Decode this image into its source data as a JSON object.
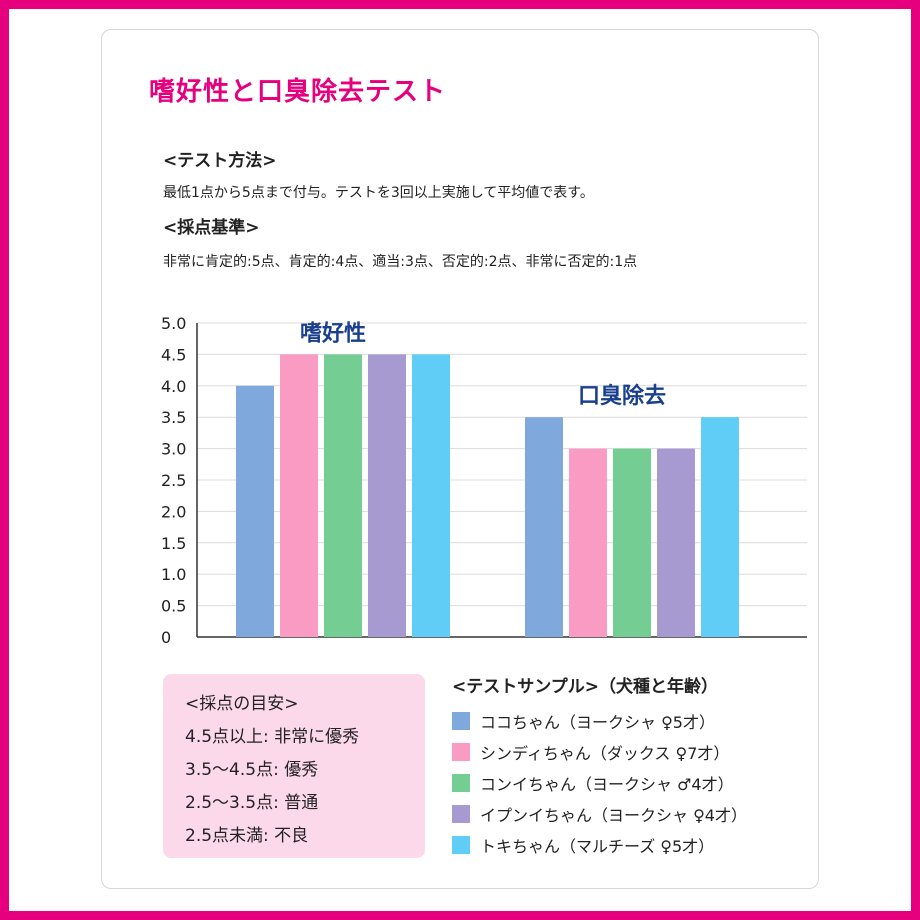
{
  "title": "嗜好性と口臭除去テスト",
  "method": {
    "heading": "<テスト方法>",
    "text": "最低1点から5点まで付与。テストを3回以上実施して平均値で表す。"
  },
  "criteria": {
    "heading": "<採点基準>",
    "text": "非常に肯定的:5点、肯定的:4点、適当:3点、否定的:2点、非常に否定的:1点"
  },
  "guide": {
    "heading": "<採点の目安>",
    "lines": [
      "4.5点以上: 非常に優秀",
      "3.5〜4.5点: 優秀",
      "2.5〜3.5点: 普通",
      "2.5点未満: 不良"
    ]
  },
  "legend_title": "<テストサンプル>（犬種と年齢）",
  "colors": [
    "#7fa9dc",
    "#f99bc2",
    "#74cd92",
    "#a79ad0",
    "#5fcdf6"
  ],
  "chart_data": {
    "type": "bar",
    "categories": [
      "嗜好性",
      "口臭除去"
    ],
    "series": [
      {
        "name": "ココちゃん（ヨークシャ ♀5才）",
        "values": [
          4.0,
          3.5
        ]
      },
      {
        "name": "シンディちゃん（ダックス ♀7才）",
        "values": [
          4.5,
          3.0
        ]
      },
      {
        "name": "コンイちゃん（ヨークシャ ♂4才）",
        "values": [
          4.5,
          3.0
        ]
      },
      {
        "name": "イプンイちゃん（ヨークシャ ♀4才）",
        "values": [
          4.5,
          3.0
        ]
      },
      {
        "name": "トキちゃん（マルチーズ ♀5才）",
        "values": [
          4.5,
          3.5
        ]
      }
    ],
    "yticks": [
      "0",
      "0.5",
      "1.0",
      "1.5",
      "2.0",
      "2.5",
      "3.0",
      "3.5",
      "4.0",
      "4.5",
      "5.0"
    ],
    "ylim": [
      0,
      5
    ],
    "grid": true,
    "legend_position": "bottom-right"
  }
}
